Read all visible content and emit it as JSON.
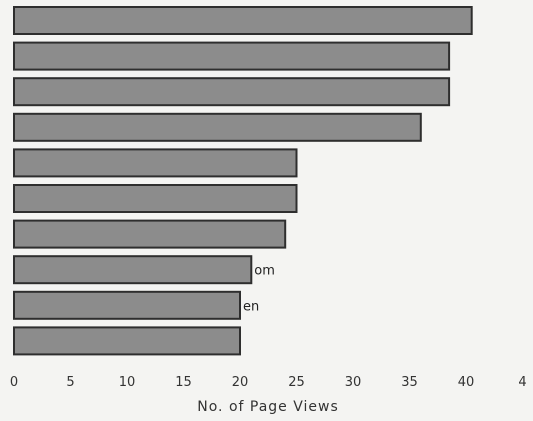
{
  "chart_data": {
    "type": "bar",
    "orientation": "horizontal",
    "categories": [
      "",
      "",
      "",
      "",
      "",
      "",
      "",
      "om",
      "en",
      ""
    ],
    "values": [
      40.5,
      38.5,
      38.5,
      36.0,
      25.0,
      25.0,
      24.0,
      21.0,
      20.0,
      20.0
    ],
    "xlabel": "No. of Page Views",
    "ylabel": "",
    "title": "",
    "xlim": [
      0,
      45
    ],
    "xticks": [
      "0",
      "5",
      "10",
      "15",
      "20",
      "25",
      "30",
      "35",
      "40",
      "4"
    ],
    "grid": false,
    "legend": "none",
    "colors": {
      "bar_fill": "#8c8c8c",
      "bar_stroke": "#2e2e2e",
      "text": "#333333",
      "background": "#f4f4f2"
    }
  }
}
